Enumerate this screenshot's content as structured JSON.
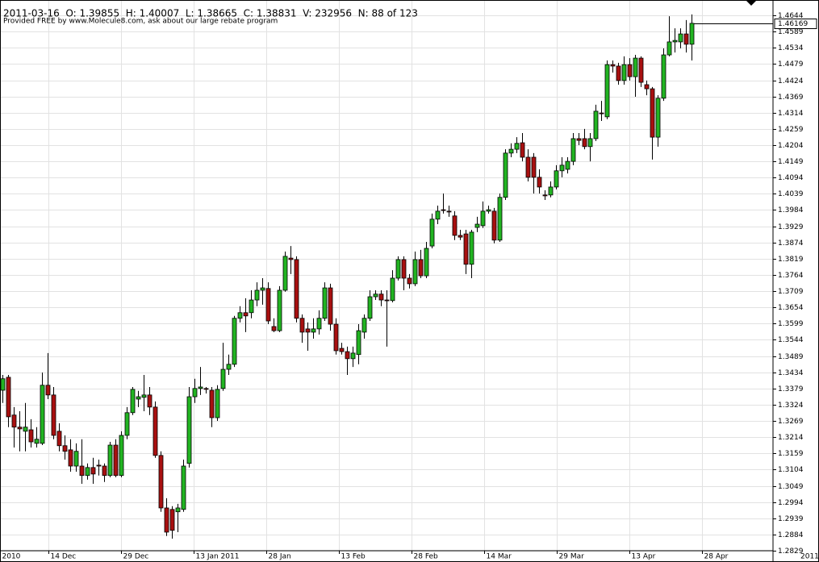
{
  "chart_data": {
    "type": "candlestick",
    "info": "2011-03-16  O: 1.39855  H: 1.40007  L: 1.38665  C: 1.38831  V: 232956  N: 88 of 123",
    "subtitle": "Provided FREE by www.Molecule8.com, ask about our large rebate program",
    "colors": {
      "up": "#22b422",
      "down": "#a81010",
      "outline": "#000000"
    },
    "open": [
      1.3373,
      1.3417,
      1.3289,
      1.3248,
      1.3234,
      1.3239,
      1.3193,
      1.3193,
      1.339,
      1.3357,
      1.3234,
      1.3185,
      1.3171,
      1.3116,
      1.3116,
      1.3084,
      1.3111,
      1.3119,
      1.3116,
      1.3084,
      1.3187,
      1.3084,
      1.322,
      1.3297,
      1.3343,
      1.3349,
      1.3357,
      1.3316,
      1.3152,
      1.2974,
      1.2969,
      1.2961,
      1.2969,
      1.3125,
      1.3351,
      1.3379,
      1.3379,
      1.3373,
      1.328,
      1.3379,
      1.3444,
      1.3461,
      1.3617,
      1.3636,
      1.3636,
      1.3679,
      1.3712,
      1.3718,
      1.3589,
      1.3575,
      1.3712,
      1.3821,
      1.3816,
      1.3617,
      1.3581,
      1.357,
      1.3581,
      1.3617,
      1.372,
      1.3597,
      1.3515,
      1.3504,
      1.348,
      1.3494,
      1.357,
      1.3617,
      1.369,
      1.3699,
      1.3679,
      1.3677,
      1.3753,
      1.3816,
      1.3753,
      1.3734,
      1.3816,
      1.3761,
      1.3862,
      1.3953,
      1.3985,
      1.398,
      1.3964,
      1.3898,
      1.3903,
      1.38,
      1.3925,
      1.3931,
      1.398,
      1.398,
      1.3882,
      1.4027,
      1.4177,
      1.419,
      1.4212,
      1.4163,
      1.4163,
      1.4095,
      1.4035,
      1.4035,
      1.4062,
      1.4117,
      1.4122,
      1.4149,
      1.4226,
      1.4226,
      1.4199,
      1.4226,
      1.4313,
      1.43,
      1.4477,
      1.4472,
      1.4423,
      1.4477,
      1.4436,
      1.4499,
      1.4409,
      1.4395,
      1.4231,
      1.4363,
      1.451,
      1.4554,
      1.4554,
      1.4581,
      1.4546
    ],
    "high": [
      1.3425,
      1.3425,
      1.3316,
      1.3302,
      1.333,
      1.3275,
      1.3248,
      1.3433,
      1.3499,
      1.3384,
      1.3261,
      1.322,
      1.3207,
      1.3193,
      1.3207,
      1.3125,
      1.3144,
      1.3138,
      1.3125,
      1.3198,
      1.3207,
      1.3234,
      1.3316,
      1.3384,
      1.3371,
      1.3425,
      1.3384,
      1.3335,
      1.3166,
      1.3007,
      1.298,
      1.2988,
      1.3138,
      1.3384,
      1.3412,
      1.3452,
      1.3384,
      1.3384,
      1.339,
      1.3534,
      1.3494,
      1.3625,
      1.3658,
      1.3685,
      1.3712,
      1.3739,
      1.3753,
      1.3739,
      1.3617,
      1.3726,
      1.3843,
      1.3862,
      1.3827,
      1.363,
      1.3603,
      1.3617,
      1.3644,
      1.3739,
      1.3734,
      1.3617,
      1.3534,
      1.3521,
      1.3521,
      1.3597,
      1.363,
      1.3712,
      1.3712,
      1.3712,
      1.3712,
      1.378,
      1.3827,
      1.3827,
      1.3767,
      1.3843,
      1.3849,
      1.3876,
      1.3972,
      1.3999,
      1.404,
      1.3999,
      1.398,
      1.3917,
      1.3917,
      1.3917,
      1.3961,
      1.4013,
      1.3999,
      1.3991,
      1.404,
      1.419,
      1.421,
      1.4231,
      1.4245,
      1.419,
      1.4177,
      1.4122,
      1.4051,
      1.4081,
      1.4136,
      1.4163,
      1.4163,
      1.4245,
      1.4245,
      1.4259,
      1.4245,
      1.4341,
      1.4354,
      1.4491,
      1.4491,
      1.4483,
      1.4505,
      1.4499,
      1.451,
      1.4505,
      1.4423,
      1.4401,
      1.4373,
      1.4532,
      1.4641,
      1.46,
      1.46,
      1.4628,
      1.4647
    ],
    "low": [
      1.333,
      1.3248,
      1.3179,
      1.3166,
      1.3166,
      1.3179,
      1.3179,
      1.3187,
      1.3343,
      1.3207,
      1.3166,
      1.3138,
      1.3097,
      1.3097,
      1.3056,
      1.307,
      1.3056,
      1.3084,
      1.3062,
      1.3078,
      1.3078,
      1.3078,
      1.3207,
      1.3289,
      1.3316,
      1.3302,
      1.3289,
      1.3144,
      1.2961,
      1.2879,
      1.287,
      1.2892,
      1.2961,
      1.3111,
      1.333,
      1.3357,
      1.3362,
      1.3248,
      1.3269,
      1.3371,
      1.3425,
      1.3452,
      1.3603,
      1.357,
      1.3617,
      1.3658,
      1.3663,
      1.3597,
      1.357,
      1.357,
      1.3707,
      1.3767,
      1.3603,
      1.3534,
      1.3507,
      1.3548,
      1.3562,
      1.3608,
      1.3575,
      1.3494,
      1.3494,
      1.3425,
      1.3452,
      1.3461,
      1.3548,
      1.3608,
      1.3679,
      1.3658,
      1.3521,
      1.3671,
      1.3745,
      1.3712,
      1.3718,
      1.3726,
      1.3753,
      1.3753,
      1.3854,
      1.3936,
      1.3972,
      1.3961,
      1.3882,
      1.3882,
      1.3767,
      1.3753,
      1.3909,
      1.3923,
      1.3972,
      1.3871,
      1.3876,
      1.4018,
      1.4163,
      1.4177,
      1.4149,
      1.4081,
      1.404,
      1.404,
      1.4018,
      1.4027,
      1.4054,
      1.4095,
      1.4108,
      1.4136,
      1.4204,
      1.419,
      1.4149,
      1.4218,
      1.4286,
      1.4292,
      1.445,
      1.4409,
      1.4409,
      1.4423,
      1.4368,
      1.4401,
      1.4373,
      1.4155,
      1.4199,
      1.4354,
      1.4505,
      1.4518,
      1.4532,
      1.4518,
      1.4491
    ],
    "close": [
      1.3412,
      1.3283,
      1.3248,
      1.3242,
      1.3248,
      1.3198,
      1.3207,
      1.339,
      1.3357,
      1.322,
      1.3185,
      1.3166,
      1.3116,
      1.3166,
      1.3084,
      1.3111,
      1.3089,
      1.3116,
      1.3084,
      1.3187,
      1.3084,
      1.322,
      1.3297,
      1.3376,
      1.3351,
      1.3357,
      1.3316,
      1.3152,
      1.2974,
      1.2892,
      1.2898,
      1.2974,
      1.3116,
      1.3351,
      1.3379,
      1.3384,
      1.3376,
      1.328,
      1.3376,
      1.3444,
      1.3461,
      1.3617,
      1.3636,
      1.3625,
      1.3679,
      1.3712,
      1.372,
      1.3608,
      1.3575,
      1.3712,
      1.3827,
      1.3816,
      1.3617,
      1.357,
      1.357,
      1.3581,
      1.3617,
      1.372,
      1.3597,
      1.3507,
      1.3504,
      1.348,
      1.3499,
      1.3575,
      1.3617,
      1.369,
      1.3699,
      1.3679,
      1.3677,
      1.3753,
      1.3816,
      1.3753,
      1.3734,
      1.3816,
      1.3761,
      1.3854,
      1.3953,
      1.398,
      1.3983,
      1.3978,
      1.3898,
      1.3892,
      1.38,
      1.3909,
      1.3936,
      1.398,
      1.3985,
      1.3882,
      1.4027,
      1.4177,
      1.419,
      1.421,
      1.4163,
      1.4095,
      1.4095,
      1.4062,
      1.4032,
      1.4062,
      1.4117,
      1.4136,
      1.4149,
      1.4226,
      1.422,
      1.4199,
      1.4226,
      1.4319,
      1.4311,
      1.4477,
      1.4472,
      1.4423,
      1.4477,
      1.4436,
      1.4499,
      1.4417,
      1.4395,
      1.4231,
      1.4363,
      1.451,
      1.4554,
      1.4559,
      1.4581,
      1.4546,
      1.4617
    ],
    "last_price": 1.46169,
    "xlim": [
      -0.43,
      136.43
    ],
    "xticks": [
      {
        "value": -0.43,
        "label": "2010"
      },
      {
        "value": 8.14,
        "label": "14 Dec"
      },
      {
        "value": 21.0,
        "label": "29 Dec"
      },
      {
        "value": 33.86,
        "label": "13 Jan 2011"
      },
      {
        "value": 46.71,
        "label": "28 Jan"
      },
      {
        "value": 59.57,
        "label": "13 Feb"
      },
      {
        "value": 72.43,
        "label": "28 Feb"
      },
      {
        "value": 85.29,
        "label": "14 Mar"
      },
      {
        "value": 98.14,
        "label": "29 Mar"
      },
      {
        "value": 111.0,
        "label": "13 Apr"
      },
      {
        "value": 123.86,
        "label": "28 Apr"
      }
    ],
    "corner_label": "2011",
    "ylim": [
      1.2829,
      1.4696
    ],
    "yticks": [
      1.2829,
      1.2884,
      1.2939,
      1.2994,
      1.3049,
      1.3104,
      1.3159,
      1.3214,
      1.3269,
      1.3324,
      1.3379,
      1.3434,
      1.3489,
      1.3544,
      1.3599,
      1.3654,
      1.3709,
      1.3764,
      1.3819,
      1.3874,
      1.3929,
      1.3984,
      1.4039,
      1.4094,
      1.4149,
      1.4204,
      1.4259,
      1.4314,
      1.4369,
      1.4424,
      1.4479,
      1.4534,
      1.4589,
      1.4644
    ],
    "grid": true
  }
}
